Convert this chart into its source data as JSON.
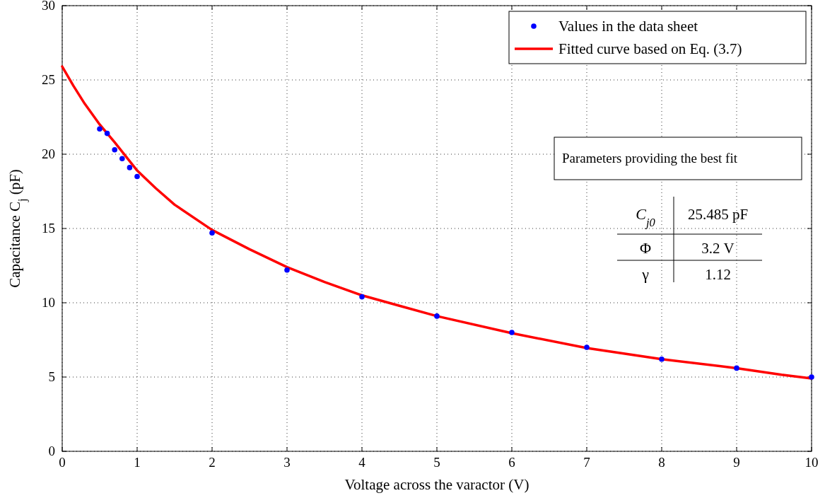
{
  "chart_data": {
    "type": "scatter",
    "xlabel": "Voltage across the varactor (V)",
    "ylabel": "Capacitance C$_{j}$ (pF)",
    "xlim": [
      0,
      10
    ],
    "ylim": [
      0,
      30
    ],
    "xticks": [
      0,
      1,
      2,
      3,
      4,
      5,
      6,
      7,
      8,
      9,
      10
    ],
    "yticks": [
      0,
      5,
      10,
      15,
      20,
      25,
      30
    ],
    "grid": true,
    "legend": "top right",
    "series": [
      {
        "name": "Values in the data sheet",
        "marker": "circle",
        "color": "#0000ff",
        "x": [
          0.5,
          0.6,
          0.7,
          0.8,
          0.9,
          1,
          2,
          3,
          4,
          5,
          6,
          7,
          8,
          9,
          10
        ],
        "values": [
          21.7,
          21.4,
          20.3,
          19.7,
          19.1,
          18.5,
          14.7,
          12.2,
          10.4,
          9.1,
          8.0,
          7.0,
          6.2,
          5.6,
          5.0
        ]
      },
      {
        "name": "Fitted curve based on Eq. (3.7)",
        "type": "line",
        "marker": "none",
        "line_style": "solid",
        "color": "#ff0000",
        "x": [
          0,
          0.15,
          0.3,
          0.5,
          0.7,
          1,
          1.25,
          1.5,
          2,
          2.5,
          3,
          3.5,
          4,
          4.5,
          5,
          6,
          7,
          8,
          9,
          9.6,
          10
        ],
        "values": [
          25.9,
          24.6,
          23.4,
          22.0,
          20.8,
          18.9,
          17.7,
          16.6,
          14.9,
          13.6,
          12.4,
          11.4,
          10.5,
          9.8,
          9.1,
          7.95,
          6.95,
          6.2,
          5.6,
          5.15,
          4.9
        ]
      }
    ],
    "annotations": [
      "Parameters providing the best fit",
      "C$_{j0}$",
      "25.485 pF",
      "Φ",
      "3.2 V",
      "γ",
      "1.12"
    ]
  }
}
